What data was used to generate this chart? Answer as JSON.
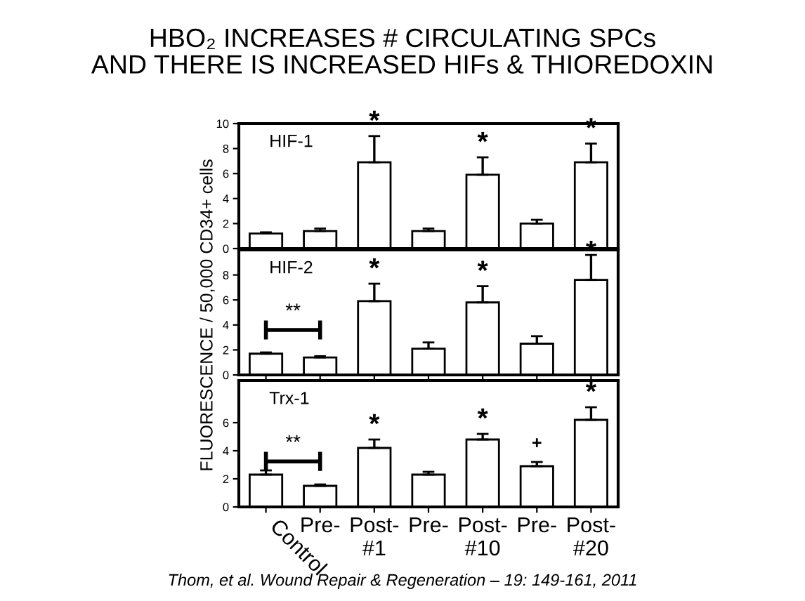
{
  "chart_data": [
    {
      "type": "bar",
      "title": "HBO₂ INCREASES # CIRCULATING SPCs\nAND THERE IS INCREASED HIFs & THIOREDOXIN",
      "ylabel": "FLUORESCENCE / 50,000 CD34+ cells",
      "categories": [
        "Control",
        "Pre-",
        "Post-\n#1",
        "Pre-",
        "Post-\n#10",
        "Pre-",
        "Post-\n#20"
      ],
      "color": "#ffffff",
      "values": [
        1.2,
        1.4,
        6.9,
        1.4,
        5.9,
        2.0,
        6.9
      ],
      "errors": [
        [
          1.2,
          1.3
        ],
        [
          1.4,
          1.6
        ],
        [
          6.9,
          9.0
        ],
        [
          1.4,
          1.6
        ],
        [
          5.9,
          7.3
        ],
        [
          2.0,
          2.3
        ],
        [
          6.9,
          8.4
        ]
      ],
      "ylim": [
        0,
        10
      ],
      "yticks": [
        0,
        2,
        4,
        6,
        8,
        10
      ],
      "tick_labels": "y",
      "grid": false,
      "annotations": [
        "HIF-1",
        {
          "text": "*",
          "x": "Post-\n#1",
          "y": 9.0
        },
        {
          "text": "*",
          "x": "Post-\n#10",
          "y": 7.3
        },
        {
          "text": "*",
          "x": "Post-\n#20",
          "y": 8.4
        }
      ]
    },
    {
      "type": "bar",
      "categories": [
        "Control",
        "Pre-",
        "Post-\n#1",
        "Pre-",
        "Post-\n#10",
        "Pre-",
        "Post-\n#20"
      ],
      "color": "#ffffff",
      "values": [
        1.7,
        1.4,
        5.9,
        2.1,
        5.8,
        2.5,
        7.6
      ],
      "errors": [
        [
          1.7,
          1.8
        ],
        [
          1.4,
          1.5
        ],
        [
          5.9,
          7.3
        ],
        [
          2.1,
          2.6
        ],
        [
          5.8,
          7.1
        ],
        [
          2.5,
          3.1
        ],
        [
          7.6,
          9.6
        ]
      ],
      "ylim": [
        0,
        10
      ],
      "yticks": [
        0,
        2,
        4,
        6,
        8
      ],
      "tick_labels": "y",
      "grid": false,
      "annotations": [
        "HIF-2",
        "**",
        {
          "text": "*",
          "x": "Post-\n#1",
          "y": 7.3
        },
        {
          "text": "*",
          "x": "Post-\n#10",
          "y": 7.1
        },
        {
          "text": "*",
          "x": "Post-\n#20",
          "y": 8.7
        }
      ]
    },
    {
      "type": "bar",
      "categories": [
        "Control",
        "Pre-",
        "Post-\n#1",
        "Pre-",
        "Post-\n#10",
        "Pre-",
        "Post-\n#20"
      ],
      "color": "#ffffff",
      "values": [
        2.3,
        1.5,
        4.2,
        2.3,
        4.8,
        2.9,
        6.2
      ],
      "errors": [
        [
          2.3,
          2.6
        ],
        [
          1.5,
          1.6
        ],
        [
          4.2,
          4.8
        ],
        [
          2.3,
          2.5
        ],
        [
          4.8,
          5.2
        ],
        [
          2.9,
          3.2
        ],
        [
          6.2,
          7.1
        ]
      ],
      "ylim": [
        0,
        9
      ],
      "yticks": [
        0,
        2,
        4,
        6
      ],
      "grid": false,
      "annotations": [
        "Trx-1",
        "**",
        {
          "text": "*",
          "x": "Post-\n#1",
          "y": 4.8
        },
        {
          "text": "*",
          "x": "Post-\n#10",
          "y": 5.2
        },
        {
          "text": "*",
          "x": "Post-\n#20",
          "y": 7.1
        },
        {
          "text": "+",
          "y": 3.2
        },
        "Thom, et al. Wound Repair & Regeneration – 19: 149-161, 2011"
      ]
    }
  ]
}
